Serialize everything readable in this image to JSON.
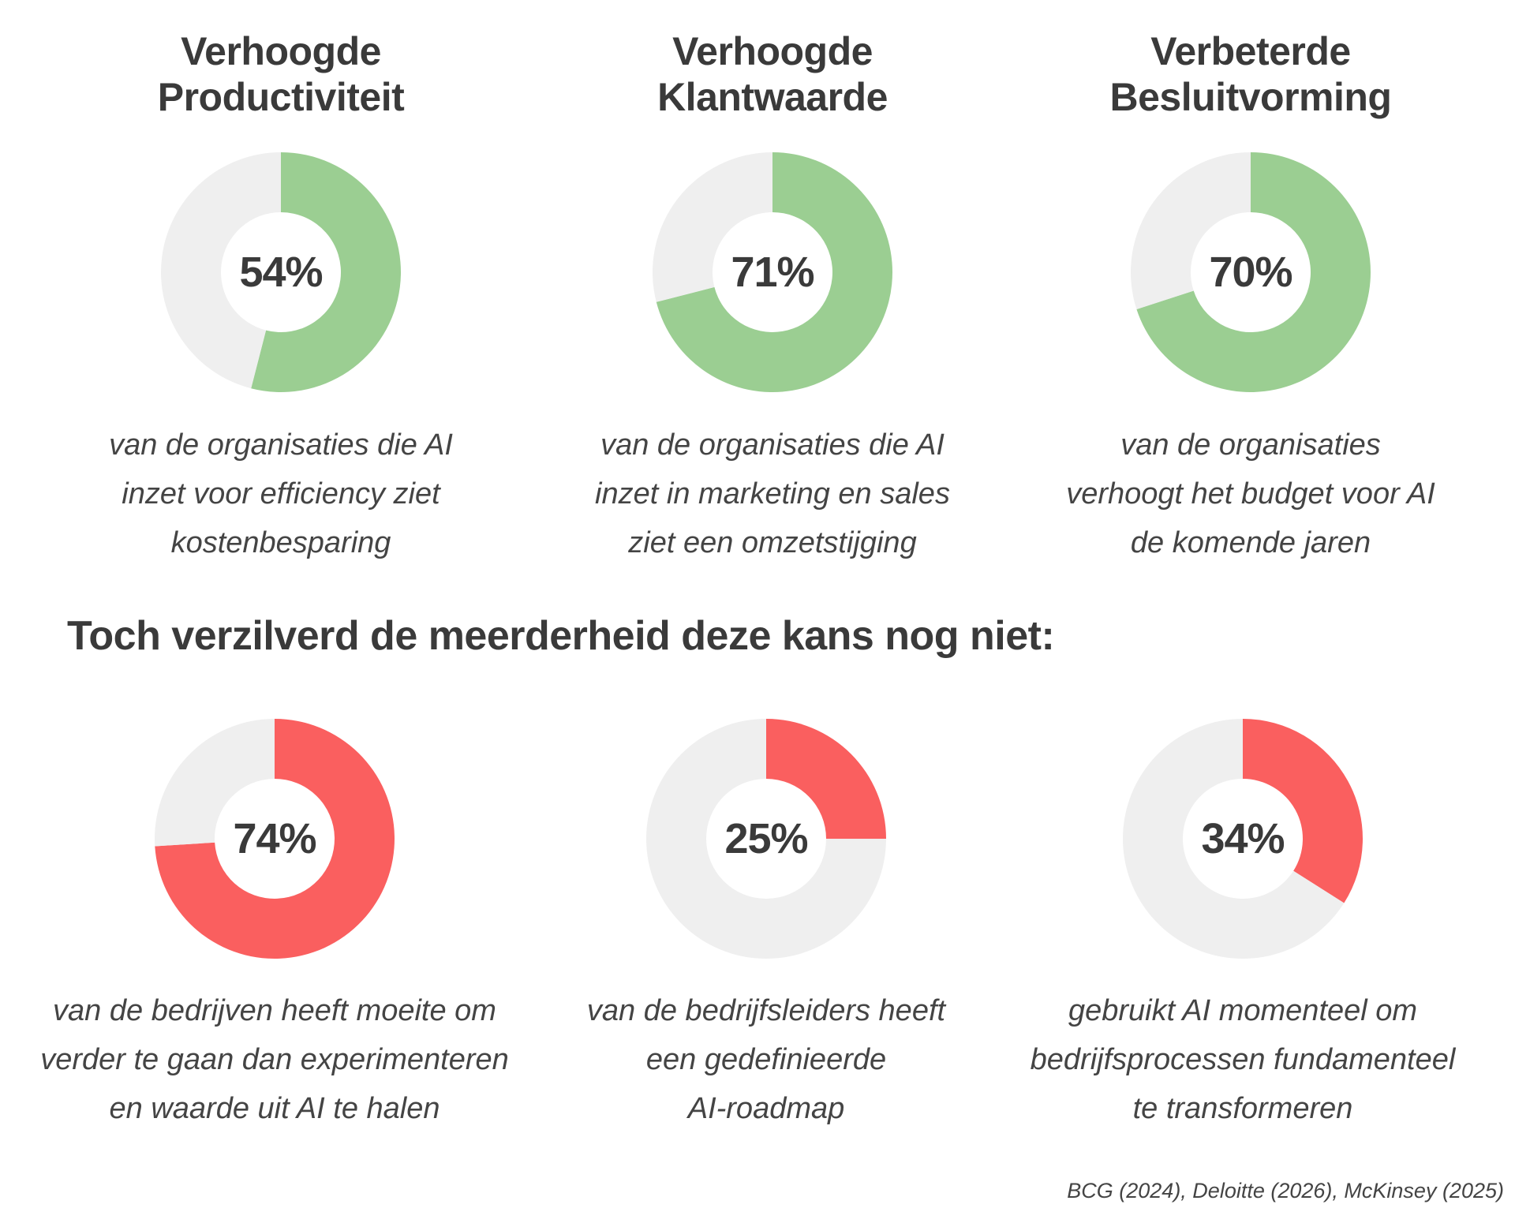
{
  "colors": {
    "positive": "#9bce92",
    "negative": "#fa5f5f",
    "track": "#efefef",
    "text": "#3a3a3a"
  },
  "top": [
    {
      "title_lines": [
        "Verhoogde",
        "Productiviteit"
      ],
      "value_label": "54%",
      "desc_lines": [
        "van de organisaties die AI",
        "inzet voor efficiency ziet",
        "kostenbesparing"
      ]
    },
    {
      "title_lines": [
        "Verhoogde",
        "Klantwaarde"
      ],
      "value_label": "71%",
      "desc_lines": [
        "van de organisaties die AI",
        "inzet in marketing en sales",
        "ziet een omzetstijging"
      ]
    },
    {
      "title_lines": [
        "Verbeterde",
        "Besluitvorming"
      ],
      "value_label": "70%",
      "desc_lines": [
        "van de organisaties",
        "verhoogt het budget voor AI",
        "de komende jaren"
      ]
    }
  ],
  "section_heading": "Toch verzilverd de meerderheid deze kans nog niet:",
  "bottom": [
    {
      "value_label": "74%",
      "desc_lines": [
        "van de bedrijven heeft moeite om",
        "verder te gaan dan experimenteren",
        "en waarde uit AI te halen"
      ]
    },
    {
      "value_label": "25%",
      "desc_lines": [
        "van de bedrijfsleiders heeft",
        "een gedefinieerde",
        "AI-roadmap"
      ]
    },
    {
      "value_label": "34%",
      "desc_lines": [
        "gebruikt AI momenteel om",
        "bedrijfsprocessen fundamenteel",
        "te transformeren"
      ]
    }
  ],
  "sources": "BCG (2024), Deloitte (2026), McKinsey (2025)",
  "chart_data": [
    {
      "type": "pie",
      "values": [
        54,
        46
      ],
      "labels": [
        "54%",
        ""
      ],
      "colors": [
        "#9bce92",
        "#efefef"
      ]
    },
    {
      "type": "pie",
      "values": [
        71,
        29
      ],
      "labels": [
        "71%",
        ""
      ],
      "colors": [
        "#9bce92",
        "#efefef"
      ]
    },
    {
      "type": "pie",
      "values": [
        70,
        30
      ],
      "labels": [
        "70%",
        ""
      ],
      "colors": [
        "#9bce92",
        "#efefef"
      ]
    },
    {
      "type": "pie",
      "values": [
        74,
        26
      ],
      "labels": [
        "74%",
        ""
      ],
      "colors": [
        "#fa5f5f",
        "#efefef"
      ]
    },
    {
      "type": "pie",
      "values": [
        25,
        75
      ],
      "labels": [
        "25%",
        ""
      ],
      "colors": [
        "#fa5f5f",
        "#efefef"
      ]
    },
    {
      "type": "pie",
      "values": [
        34,
        66
      ],
      "labels": [
        "34%",
        ""
      ],
      "colors": [
        "#fa5f5f",
        "#efefef"
      ]
    }
  ]
}
